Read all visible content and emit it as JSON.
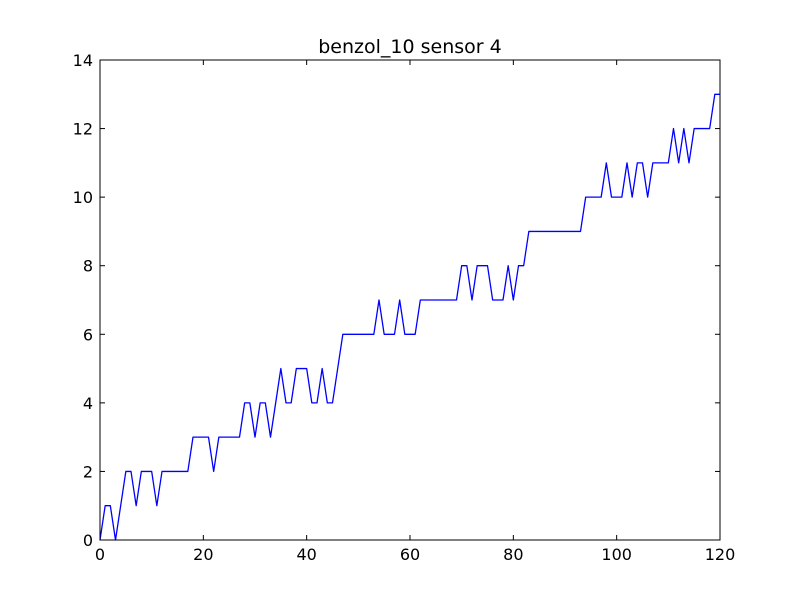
{
  "chart_data": {
    "type": "line",
    "title": "benzol_10 sensor 4",
    "xlabel": "",
    "ylabel": "",
    "xlim": [
      0,
      120
    ],
    "ylim": [
      0,
      14
    ],
    "x_ticks": [
      0,
      20,
      40,
      60,
      80,
      100,
      120
    ],
    "y_ticks": [
      0,
      2,
      4,
      6,
      8,
      10,
      12,
      14
    ],
    "grid": false,
    "legend": "none",
    "series": [
      {
        "color": "#0000ff",
        "x": [
          0,
          1,
          2,
          3,
          4,
          5,
          6,
          7,
          8,
          9,
          10,
          11,
          12,
          13,
          14,
          15,
          16,
          17,
          18,
          19,
          20,
          21,
          22,
          23,
          24,
          25,
          26,
          27,
          28,
          29,
          30,
          31,
          32,
          33,
          34,
          35,
          36,
          37,
          38,
          39,
          40,
          41,
          42,
          43,
          44,
          45,
          46,
          47,
          48,
          49,
          50,
          51,
          52,
          53,
          54,
          55,
          56,
          57,
          58,
          59,
          60,
          61,
          62,
          63,
          64,
          65,
          66,
          67,
          68,
          69,
          70,
          71,
          72,
          73,
          74,
          75,
          76,
          77,
          78,
          79,
          80,
          81,
          82,
          83,
          84,
          85,
          86,
          87,
          88,
          89,
          90,
          91,
          92,
          93,
          94,
          95,
          96,
          97,
          98,
          99,
          100,
          101,
          102,
          103,
          104,
          105,
          106,
          107,
          108,
          109,
          110,
          111,
          112,
          113,
          114,
          115,
          116,
          117,
          118,
          119,
          120
        ],
        "values": [
          0,
          1,
          1,
          0,
          1,
          2,
          2,
          1,
          2,
          2,
          2,
          1,
          2,
          2,
          2,
          2,
          2,
          2,
          3,
          3,
          3,
          3,
          2,
          3,
          3,
          3,
          3,
          3,
          4,
          4,
          3,
          4,
          4,
          3,
          4,
          5,
          4,
          4,
          5,
          5,
          5,
          4,
          4,
          5,
          4,
          4,
          5,
          6,
          6,
          6,
          6,
          6,
          6,
          6,
          7,
          6,
          6,
          6,
          7,
          6,
          6,
          6,
          7,
          7,
          7,
          7,
          7,
          7,
          7,
          7,
          8,
          8,
          7,
          8,
          8,
          8,
          7,
          7,
          7,
          8,
          7,
          8,
          8,
          9,
          9,
          9,
          9,
          9,
          9,
          9,
          9,
          9,
          9,
          9,
          10,
          10,
          10,
          10,
          11,
          10,
          10,
          10,
          11,
          10,
          11,
          11,
          10,
          11,
          11,
          11,
          11,
          12,
          11,
          12,
          11,
          12,
          12,
          12,
          12,
          13,
          13
        ]
      }
    ]
  }
}
